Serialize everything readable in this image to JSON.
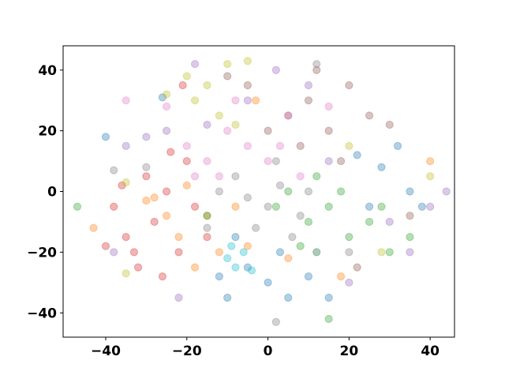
{
  "chart_data": {
    "type": "scatter",
    "title": "",
    "xlabel": "",
    "ylabel": "",
    "xlim": [
      -50.5,
      46
    ],
    "ylim": [
      -48,
      48
    ],
    "xticks": [
      -40,
      -20,
      0,
      20,
      40
    ],
    "yticks": [
      -40,
      -20,
      0,
      20,
      40
    ],
    "grid": false,
    "marker_alpha": 0.35,
    "series": [
      {
        "color": "#d62728",
        "points": [
          [
            -38,
            -5
          ],
          [
            -35,
            -15
          ],
          [
            -32,
            -25
          ],
          [
            -30,
            5
          ],
          [
            -28,
            -10
          ],
          [
            -25,
            0
          ],
          [
            -22,
            -20
          ],
          [
            -20,
            10
          ],
          [
            -18,
            -5
          ],
          [
            -36,
            2
          ],
          [
            -26,
            -28
          ],
          [
            -15,
            -15
          ],
          [
            -24,
            13
          ],
          [
            -33,
            -20
          ],
          [
            -21,
            35
          ],
          [
            -40,
            -18
          ]
        ]
      },
      {
        "color": "#ff7f0e",
        "points": [
          [
            -28,
            -2
          ],
          [
            -25,
            -8
          ],
          [
            -22,
            -15
          ],
          [
            -18,
            -25
          ],
          [
            -15,
            -8
          ],
          [
            -12,
            -20
          ],
          [
            -8,
            -5
          ],
          [
            -5,
            -18
          ],
          [
            -3,
            30
          ],
          [
            5,
            -22
          ],
          [
            12,
            -20
          ],
          [
            18,
            -28
          ],
          [
            -20,
            2
          ],
          [
            -30,
            -3
          ],
          [
            -43,
            -12
          ],
          [
            40,
            10
          ]
        ]
      },
      {
        "color": "#1f77b4",
        "points": [
          [
            -10,
            -35
          ],
          [
            -5,
            -25
          ],
          [
            0,
            -30
          ],
          [
            5,
            -35
          ],
          [
            10,
            -28
          ],
          [
            -12,
            -28
          ],
          [
            3,
            -20
          ],
          [
            22,
            12
          ],
          [
            28,
            8
          ],
          [
            32,
            15
          ],
          [
            35,
            0
          ],
          [
            25,
            -5
          ],
          [
            -8,
            -15
          ],
          [
            15,
            -35
          ],
          [
            38,
            -5
          ],
          [
            -40,
            18
          ],
          [
            -26,
            31
          ]
        ]
      },
      {
        "color": "#2ca02c",
        "points": [
          [
            2,
            -5
          ],
          [
            5,
            0
          ],
          [
            10,
            -10
          ],
          [
            15,
            -5
          ],
          [
            20,
            -15
          ],
          [
            25,
            -10
          ],
          [
            30,
            -20
          ],
          [
            8,
            -18
          ],
          [
            18,
            0
          ],
          [
            12,
            5
          ],
          [
            -15,
            -8
          ],
          [
            28,
            -5
          ],
          [
            -47,
            -5
          ],
          [
            15,
            -42
          ],
          [
            35,
            -15
          ]
        ]
      },
      {
        "color": "#9467bd",
        "points": [
          [
            -35,
            15
          ],
          [
            -30,
            18
          ],
          [
            -25,
            20
          ],
          [
            -15,
            22
          ],
          [
            -5,
            30
          ],
          [
            2,
            40
          ],
          [
            10,
            35
          ],
          [
            -38,
            -20
          ],
          [
            35,
            -20
          ],
          [
            40,
            -5
          ],
          [
            -22,
            -35
          ],
          [
            20,
            -30
          ],
          [
            30,
            -10
          ],
          [
            15,
            10
          ],
          [
            -18,
            42
          ],
          [
            44,
            0
          ]
        ]
      },
      {
        "color": "#8c564b",
        "points": [
          [
            0,
            20
          ],
          [
            5,
            25
          ],
          [
            10,
            30
          ],
          [
            15,
            20
          ],
          [
            20,
            35
          ],
          [
            25,
            25
          ],
          [
            8,
            15
          ],
          [
            -5,
            35
          ],
          [
            18,
            10
          ],
          [
            30,
            22
          ],
          [
            -10,
            38
          ],
          [
            12,
            40
          ],
          [
            22,
            -25
          ],
          [
            35,
            -8
          ]
        ]
      },
      {
        "color": "#e377c2",
        "points": [
          [
            -20,
            15
          ],
          [
            -15,
            10
          ],
          [
            -10,
            20
          ],
          [
            -5,
            15
          ],
          [
            0,
            10
          ],
          [
            5,
            25
          ],
          [
            -12,
            5
          ],
          [
            -25,
            28
          ],
          [
            8,
            5
          ],
          [
            -8,
            30
          ],
          [
            15,
            28
          ],
          [
            -35,
            30
          ],
          [
            -18,
            5
          ],
          [
            3,
            15
          ]
        ]
      },
      {
        "color": "#7f7f7f",
        "points": [
          [
            -5,
            -2
          ],
          [
            0,
            -5
          ],
          [
            3,
            2
          ],
          [
            8,
            -8
          ],
          [
            -8,
            5
          ],
          [
            2,
            10
          ],
          [
            -3,
            -12
          ],
          [
            10,
            0
          ],
          [
            -12,
            0
          ],
          [
            6,
            -15
          ],
          [
            -30,
            8
          ],
          [
            -38,
            7
          ],
          [
            12,
            42
          ],
          [
            20,
            -20
          ],
          [
            2,
            -43
          ],
          [
            -15,
            -12
          ]
        ]
      },
      {
        "color": "#bcbd22",
        "points": [
          [
            -18,
            30
          ],
          [
            -15,
            35
          ],
          [
            -10,
            42
          ],
          [
            -5,
            43
          ],
          [
            -12,
            25
          ],
          [
            -20,
            38
          ],
          [
            -25,
            32
          ],
          [
            -35,
            -27
          ],
          [
            -35,
            3
          ],
          [
            40,
            5
          ],
          [
            20,
            15
          ],
          [
            28,
            -20
          ],
          [
            -8,
            22
          ]
        ]
      },
      {
        "color": "#17becf",
        "points": [
          [
            -10,
            -22
          ],
          [
            -8,
            -25
          ],
          [
            -6,
            -20
          ],
          [
            -9,
            -18
          ],
          [
            12,
            -20
          ],
          [
            -4,
            -26
          ]
        ]
      }
    ]
  }
}
